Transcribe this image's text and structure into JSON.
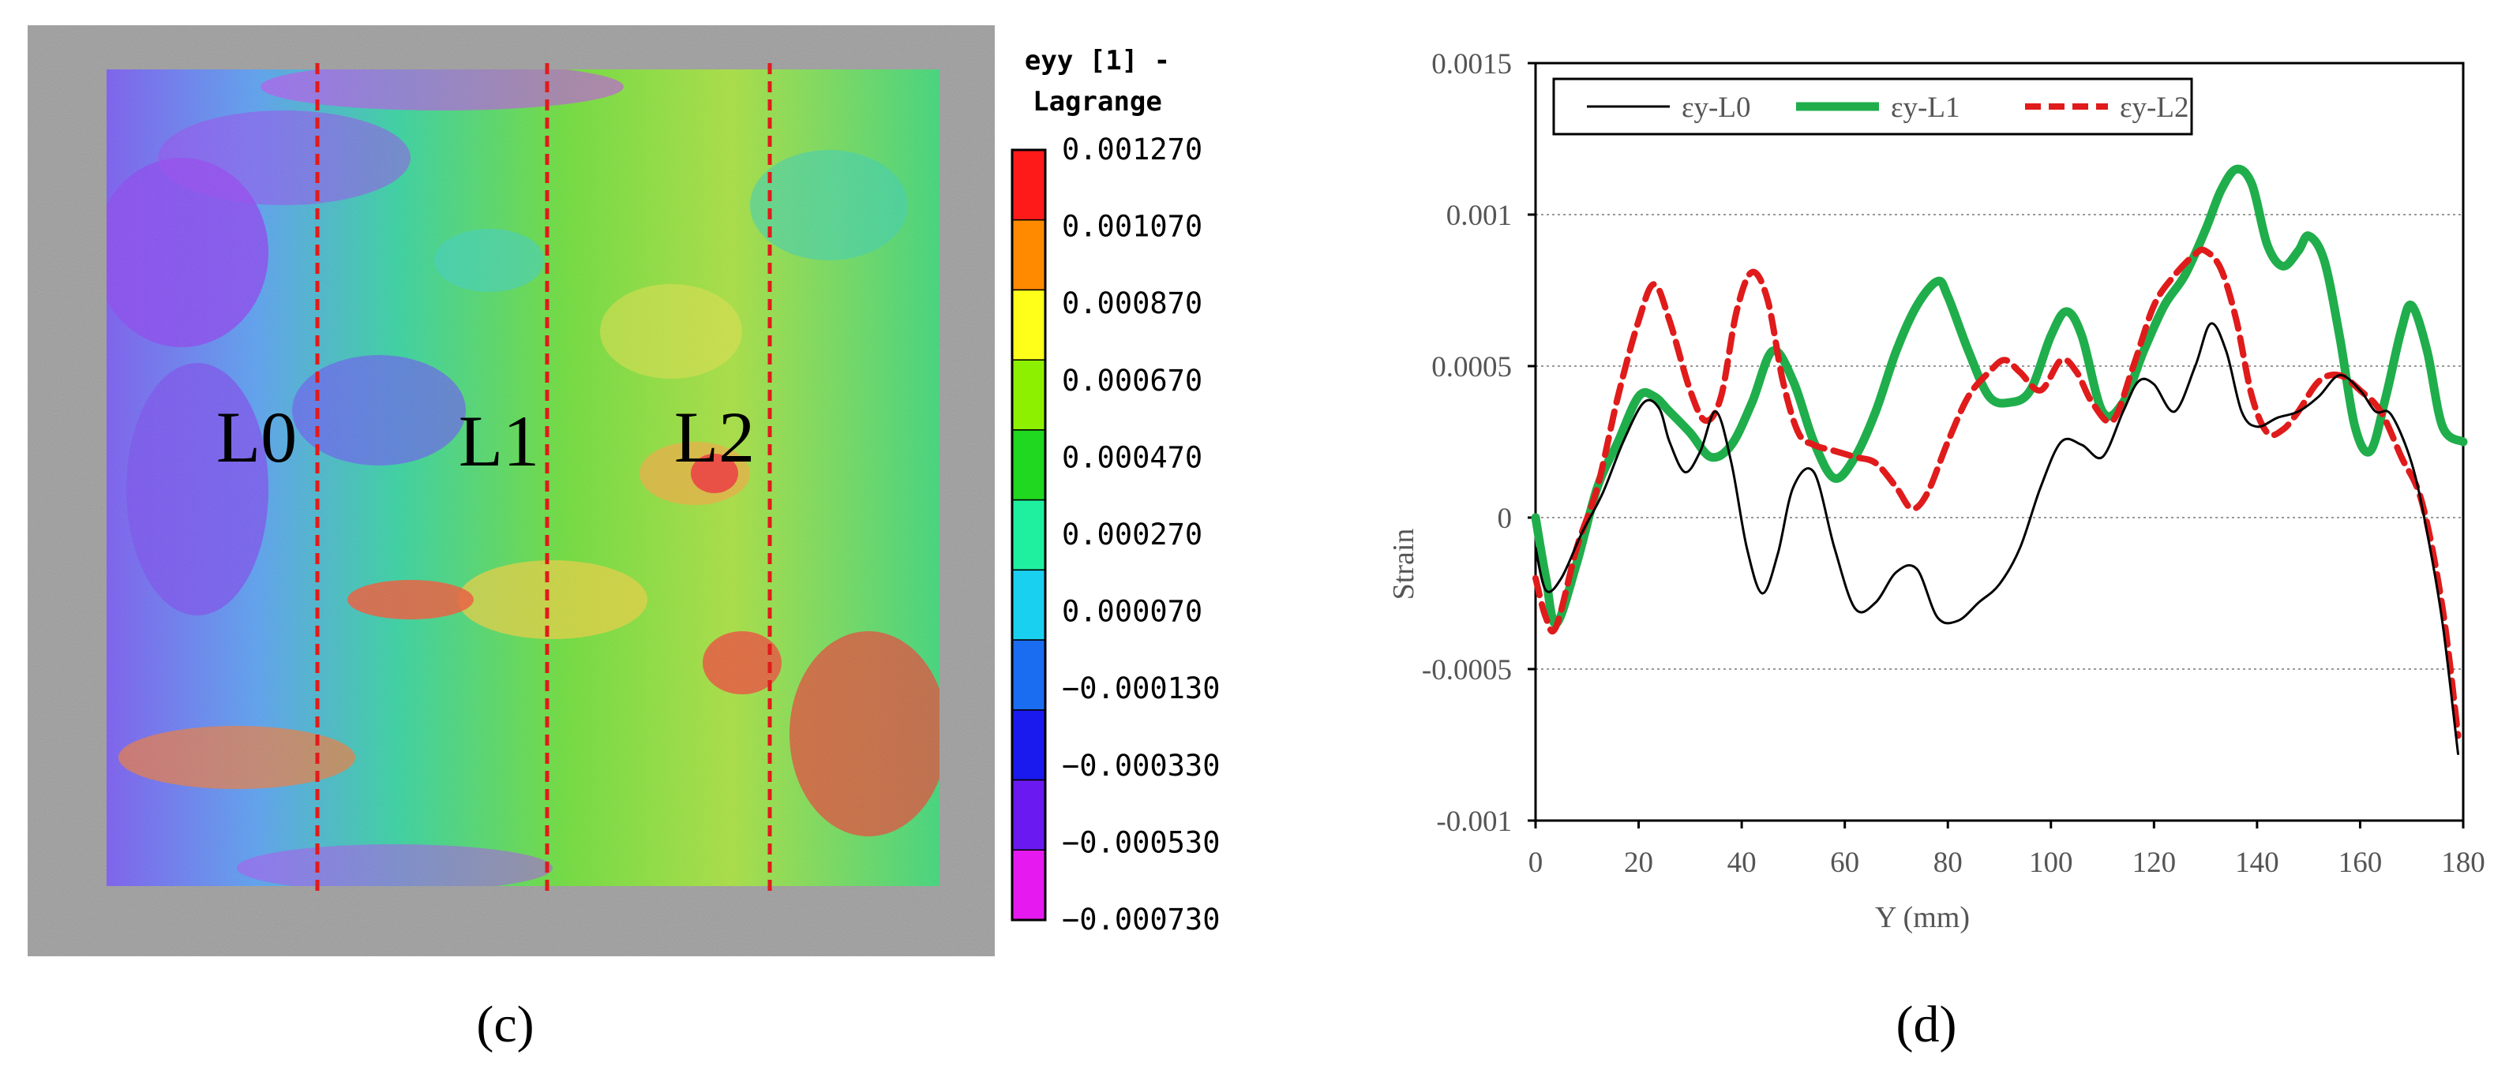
{
  "panel_c": {
    "label": "(c)",
    "line_labels": [
      "L0",
      "L1",
      "L2"
    ],
    "colorbar": {
      "title_line1": "eyy [1] -",
      "title_line2": "Lagrange",
      "ticks": [
        "0.001270",
        "0.001070",
        "0.000870",
        "0.000670",
        "0.000470",
        "0.000270",
        "0.000070",
        "−0.000130",
        "−0.000330",
        "−0.000530",
        "−0.000730"
      ],
      "colors": [
        "#ff1a1a",
        "#ff8a00",
        "#ffff1a",
        "#8cf000",
        "#1fd81f",
        "#1ff0a0",
        "#1ad0f0",
        "#1a6cf0",
        "#1a1aee",
        "#6a1af0",
        "#e61af0"
      ]
    },
    "dashed_line_color": "#e01b1b"
  },
  "panel_d": {
    "label": "(d)"
  },
  "chart_data": {
    "type": "line",
    "xlabel": "Y (mm)",
    "ylabel": "Strain",
    "xlim": [
      0,
      180
    ],
    "ylim": [
      -0.001,
      0.0015
    ],
    "xticks": [
      "0",
      "20",
      "40",
      "60",
      "80",
      "100",
      "120",
      "140",
      "160",
      "180"
    ],
    "xtick_values": [
      0,
      20,
      40,
      60,
      80,
      100,
      120,
      140,
      160,
      180
    ],
    "yticks": [
      "-0.001",
      "-0.0005",
      "0",
      "0.0005",
      "0.001",
      "0.0015"
    ],
    "ytick_values": [
      -0.001,
      -0.0005,
      0,
      0.0005,
      0.001,
      0.0015
    ],
    "grid": "horizontal dotted",
    "legend_position": "top-left",
    "series": [
      {
        "name": "εy-L0",
        "color": "#000000",
        "style": "solid-thin",
        "x": [
          0,
          2,
          5,
          9,
          13,
          17,
          21,
          24,
          26,
          29,
          32,
          35,
          38,
          41,
          44,
          47,
          50,
          54,
          58,
          62,
          66,
          70,
          74,
          78,
          82,
          86,
          90,
          94,
          98,
          102,
          106,
          110,
          114,
          117,
          120,
          124,
          128,
          131,
          134,
          137,
          140,
          144,
          148,
          152,
          156,
          160,
          163,
          166,
          170,
          173,
          176,
          179
        ],
        "y": [
          -0.0001,
          -0.00024,
          -0.0002,
          -5e-05,
          8e-05,
          0.00025,
          0.00038,
          0.00036,
          0.00025,
          0.00015,
          0.00022,
          0.00035,
          0.00018,
          -0.0001,
          -0.00025,
          -0.00012,
          0.0001,
          0.00015,
          -0.0001,
          -0.0003,
          -0.00028,
          -0.00018,
          -0.00017,
          -0.00033,
          -0.00034,
          -0.00028,
          -0.00022,
          -0.0001,
          0.0001,
          0.00025,
          0.00024,
          0.0002,
          0.00035,
          0.00045,
          0.00044,
          0.00035,
          0.0005,
          0.00064,
          0.00055,
          0.00035,
          0.0003,
          0.00033,
          0.00035,
          0.0004,
          0.00047,
          0.00042,
          0.00035,
          0.00034,
          0.00018,
          -5e-05,
          -0.00035,
          -0.00078
        ]
      },
      {
        "name": "εy-L1",
        "color": "#1fae4b",
        "style": "solid-thick",
        "x": [
          0,
          2,
          4,
          8,
          12,
          16,
          20,
          23,
          26,
          30,
          34,
          38,
          42,
          46,
          50,
          54,
          58,
          62,
          66,
          70,
          74,
          78,
          80,
          84,
          88,
          92,
          96,
          100,
          103,
          106,
          110,
          114,
          118,
          122,
          126,
          130,
          133,
          136,
          139,
          142,
          145,
          148,
          150,
          153,
          156,
          159,
          162,
          165,
          168,
          170,
          173,
          176,
          180
        ],
        "y": [
          0,
          -0.0002,
          -0.00035,
          -0.00015,
          0.0001,
          0.00025,
          0.0004,
          0.0004,
          0.00035,
          0.00028,
          0.0002,
          0.00024,
          0.00038,
          0.00055,
          0.00045,
          0.00025,
          0.00013,
          0.0002,
          0.00035,
          0.00055,
          0.0007,
          0.00078,
          0.00073,
          0.00055,
          0.0004,
          0.00038,
          0.00042,
          0.0006,
          0.00068,
          0.0006,
          0.00035,
          0.00038,
          0.00055,
          0.0007,
          0.0008,
          0.00095,
          0.00108,
          0.00115,
          0.0011,
          0.0009,
          0.00083,
          0.00088,
          0.00093,
          0.00085,
          0.0006,
          0.0003,
          0.00022,
          0.0004,
          0.00062,
          0.0007,
          0.00055,
          0.0003,
          0.00025
        ]
      },
      {
        "name": "εy-L2",
        "color": "#e01b1b",
        "style": "dashed-thick",
        "x": [
          0,
          2,
          4,
          8,
          12,
          16,
          20,
          23,
          26,
          30,
          33,
          36,
          39,
          42,
          45,
          48,
          51,
          54,
          58,
          62,
          66,
          70,
          73,
          76,
          80,
          84,
          88,
          91,
          94,
          98,
          102,
          105,
          108,
          112,
          116,
          120,
          124,
          128,
          130,
          133,
          136,
          139,
          142,
          145,
          148,
          152,
          156,
          160,
          164,
          168,
          172,
          176,
          179
        ],
        "y": [
          -0.0002,
          -0.00033,
          -0.00036,
          -0.0001,
          0.0001,
          0.0004,
          0.00065,
          0.00077,
          0.00065,
          0.00042,
          0.00032,
          0.0004,
          0.00068,
          0.00081,
          0.00072,
          0.00045,
          0.00028,
          0.00024,
          0.00022,
          0.0002,
          0.00018,
          0.0001,
          3e-05,
          8e-05,
          0.00025,
          0.0004,
          0.00048,
          0.00052,
          0.00048,
          0.00042,
          0.00052,
          0.00048,
          0.00038,
          0.00032,
          0.0005,
          0.0007,
          0.0008,
          0.00087,
          0.00088,
          0.00082,
          0.00065,
          0.0004,
          0.00028,
          0.00029,
          0.00035,
          0.00045,
          0.00047,
          0.00042,
          0.00035,
          0.0002,
          5e-05,
          -0.0003,
          -0.00072
        ]
      }
    ]
  }
}
